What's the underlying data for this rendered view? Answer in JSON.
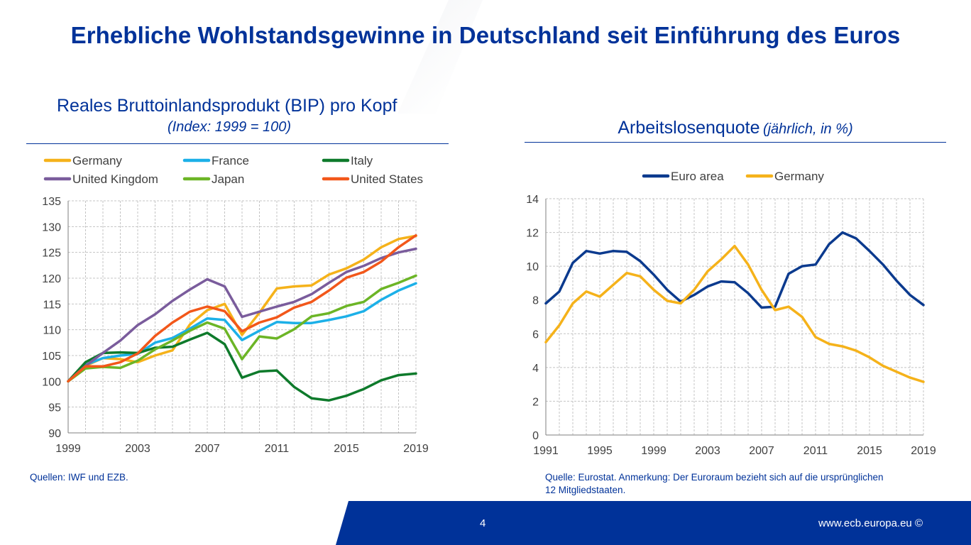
{
  "slide": {
    "title": "Erhebliche Wohlstandsgewinne in Deutschland seit Einführung des Euros",
    "page_number": "4",
    "footer_url": "www.ecb.europa.eu ©"
  },
  "left_panel": {
    "title": "Reales Bruttoinlandsprodukt (BIP) pro Kopf",
    "subtitle": "(Index: 1999 = 100)",
    "source": "Quellen: IWF und EZB."
  },
  "right_panel": {
    "title": "Arbeitslosenquote",
    "subtitle": "(jährlich, in %)",
    "source_line1": "Quelle: Eurostat. Anmerkung: Der Euroraum bezieht sich auf die ursprünglichen",
    "source_line2": "12 Mitgliedstaaten."
  },
  "chart_data": [
    {
      "type": "line",
      "title": "Reales Bruttoinlandsprodukt (BIP) pro Kopf",
      "subtitle": "(Index: 1999 = 100)",
      "x": [
        1999,
        2000,
        2001,
        2002,
        2003,
        2004,
        2005,
        2006,
        2007,
        2008,
        2009,
        2010,
        2011,
        2012,
        2013,
        2014,
        2015,
        2016,
        2017,
        2018,
        2019
      ],
      "x_tick_labels": [
        "1999",
        "2003",
        "2007",
        "2011",
        "2015",
        "2019"
      ],
      "ylim": [
        90,
        135
      ],
      "y_ticks": [
        90,
        95,
        100,
        105,
        110,
        115,
        120,
        125,
        130,
        135
      ],
      "grid": true,
      "legend_position": "top",
      "series": [
        {
          "name": "Germany",
          "color": "#F5B21A",
          "values": [
            100,
            103.0,
            104.5,
            104.3,
            103.7,
            105.0,
            106.0,
            111.0,
            113.8,
            115.0,
            109.0,
            113.3,
            118.0,
            118.4,
            118.6,
            120.7,
            121.9,
            123.6,
            126.0,
            127.6,
            128.2
          ]
        },
        {
          "name": "France",
          "color": "#1CB0E8",
          "values": [
            100,
            103.2,
            104.5,
            105.0,
            105.3,
            107.5,
            108.4,
            110.2,
            112.2,
            111.9,
            108.0,
            109.8,
            111.5,
            111.3,
            111.3,
            111.9,
            112.6,
            113.6,
            115.8,
            117.6,
            119.0
          ]
        },
        {
          "name": "Italy",
          "color": "#0E7A2B",
          "values": [
            100,
            103.7,
            105.5,
            105.6,
            105.5,
            106.5,
            106.7,
            108.1,
            109.4,
            107.2,
            100.7,
            101.9,
            102.1,
            98.9,
            96.7,
            96.3,
            97.2,
            98.5,
            100.2,
            101.2,
            101.5
          ]
        },
        {
          "name": "United Kingdom",
          "color": "#7A5C9C",
          "values": [
            100,
            103.0,
            105.5,
            107.9,
            110.9,
            113.0,
            115.6,
            117.8,
            119.8,
            118.4,
            112.5,
            113.5,
            114.5,
            115.4,
            116.9,
            119.1,
            121.2,
            122.4,
            123.9,
            125.0,
            125.7
          ]
        },
        {
          "name": "Japan",
          "color": "#6CB526",
          "values": [
            100,
            102.5,
            102.8,
            102.6,
            104.0,
            106.2,
            107.9,
            109.8,
            111.4,
            110.2,
            104.3,
            108.7,
            108.3,
            110.1,
            112.6,
            113.2,
            114.6,
            115.4,
            117.9,
            119.1,
            120.5
          ]
        },
        {
          "name": "United States",
          "color": "#F2571A",
          "values": [
            100,
            102.9,
            102.9,
            103.7,
            105.4,
            108.8,
            111.4,
            113.5,
            114.5,
            113.6,
            109.7,
            111.4,
            112.4,
            114.3,
            115.4,
            117.6,
            120.1,
            121.2,
            123.2,
            126.0,
            128.3
          ]
        }
      ]
    },
    {
      "type": "line",
      "title": "Arbeitslosenquote",
      "subtitle": "(jährlich, in %)",
      "x": [
        1991,
        1992,
        1993,
        1994,
        1995,
        1996,
        1997,
        1998,
        1999,
        2000,
        2001,
        2002,
        2003,
        2004,
        2005,
        2006,
        2007,
        2008,
        2009,
        2010,
        2011,
        2012,
        2013,
        2014,
        2015,
        2016,
        2017,
        2018,
        2019
      ],
      "x_tick_labels": [
        "1991",
        "1995",
        "1999",
        "2003",
        "2007",
        "2011",
        "2015",
        "2019"
      ],
      "ylim": [
        0,
        14
      ],
      "y_ticks": [
        0,
        2,
        4,
        6,
        8,
        10,
        12,
        14
      ],
      "grid": true,
      "legend_position": "top",
      "series": [
        {
          "name": "Euro area",
          "color": "#0B3A8E",
          "values": [
            7.8,
            8.5,
            10.2,
            10.9,
            10.75,
            10.9,
            10.85,
            10.3,
            9.5,
            8.6,
            7.9,
            8.3,
            8.8,
            9.1,
            9.05,
            8.4,
            7.55,
            7.6,
            9.55,
            10.0,
            10.1,
            11.3,
            12.0,
            11.65,
            10.9,
            10.1,
            9.15,
            8.3,
            7.7
          ]
        },
        {
          "name": "Germany",
          "color": "#F5B21A",
          "values": [
            5.5,
            6.5,
            7.8,
            8.5,
            8.2,
            8.9,
            9.6,
            9.4,
            8.6,
            7.95,
            7.8,
            8.6,
            9.7,
            10.4,
            11.2,
            10.1,
            8.6,
            7.4,
            7.6,
            7.0,
            5.8,
            5.4,
            5.25,
            5.0,
            4.6,
            4.1,
            3.75,
            3.4,
            3.15
          ]
        }
      ]
    }
  ]
}
